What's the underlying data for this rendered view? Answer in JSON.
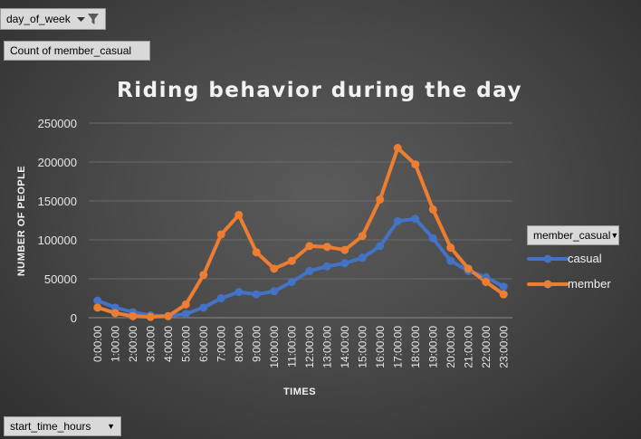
{
  "filters": {
    "day_of_week_label": "day_of_week",
    "values_label": "Count of member_casual",
    "legend_field_label": "member_casual",
    "axis_field_label": "start_time_hours"
  },
  "chart_data": {
    "type": "line",
    "title": "Riding behavior during the day",
    "xlabel": "TIMES",
    "ylabel": "NUMBER OF PEOPLE",
    "ylim": [
      0,
      250000
    ],
    "yticks": [
      "0",
      "50000",
      "100000",
      "150000",
      "200000",
      "250000"
    ],
    "grid": true,
    "legend": "right",
    "categories": [
      "0:00:00",
      "1:00:00",
      "2:00:00",
      "3:00:00",
      "4:00:00",
      "5:00:00",
      "6:00:00",
      "7:00:00",
      "8:00:00",
      "9:00:00",
      "10:00:00",
      "11:00:00",
      "12:00:00",
      "13:00:00",
      "14:00:00",
      "15:00:00",
      "16:00:00",
      "17:00:00",
      "18:00:00",
      "19:00:00",
      "20:00:00",
      "21:00:00",
      "22:00:00",
      "23:00:00"
    ],
    "series": [
      {
        "name": "casual",
        "color": "#4472c4",
        "values": [
          22000,
          13000,
          7000,
          3000,
          2000,
          5000,
          13000,
          25000,
          33000,
          30000,
          34000,
          46000,
          60000,
          66000,
          70000,
          77000,
          92000,
          124000,
          127000,
          102000,
          73000,
          60000,
          52000,
          40000
        ]
      },
      {
        "name": "member",
        "color": "#ed7d31",
        "values": [
          13000,
          6000,
          2000,
          1000,
          2000,
          17000,
          55000,
          107000,
          132000,
          84000,
          63000,
          73000,
          92000,
          91000,
          87000,
          105000,
          152000,
          218000,
          197000,
          139000,
          90000,
          63000,
          46000,
          30000
        ]
      }
    ]
  }
}
